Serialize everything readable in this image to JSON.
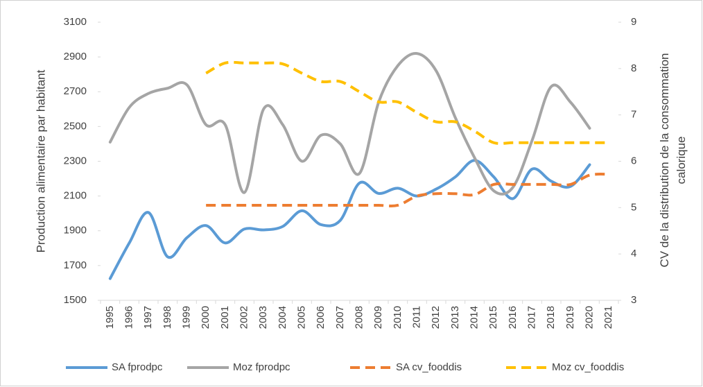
{
  "chart_data": {
    "type": "line",
    "categories": [
      "1995",
      "1996",
      "1997",
      "1998",
      "1999",
      "2000",
      "2001",
      "2002",
      "2003",
      "2004",
      "2005",
      "2006",
      "2007",
      "2008",
      "2009",
      "2010",
      "2011",
      "2012",
      "2013",
      "2014",
      "2015",
      "2016",
      "2017",
      "2018",
      "2019",
      "2020",
      "2021"
    ],
    "series": [
      {
        "name": "SA fprodpc",
        "color": "#5b9bd5",
        "dashed": false,
        "values": [
          1625,
          1830,
          2005,
          1750,
          1860,
          1930,
          1830,
          1910,
          1905,
          1925,
          2015,
          1935,
          1960,
          2175,
          2115,
          2145,
          2100,
          2140,
          2210,
          2305,
          2210,
          2085,
          2255,
          2185,
          2155,
          2280,
          null
        ]
      },
      {
        "name": "Moz fprodpc",
        "color": "#a5a5a5",
        "dashed": false,
        "values": [
          2410,
          2610,
          2690,
          2720,
          2740,
          2510,
          2510,
          2120,
          2600,
          2510,
          2300,
          2450,
          2400,
          2230,
          2640,
          2850,
          2920,
          2820,
          2550,
          2320,
          2130,
          2150,
          2420,
          2730,
          2640,
          2490,
          null
        ]
      },
      {
        "name": "SA cv_fooddis",
        "color": "#ed7d31",
        "dashed": true,
        "axis": "y2",
        "values": [
          null,
          null,
          null,
          null,
          null,
          5.05,
          5.05,
          5.05,
          5.05,
          5.05,
          5.05,
          5.05,
          5.05,
          5.05,
          5.05,
          5.05,
          5.25,
          5.3,
          5.3,
          5.28,
          5.5,
          5.5,
          5.5,
          5.5,
          5.5,
          5.7,
          5.72
        ]
      },
      {
        "name": "Moz cv_fooddis",
        "color": "#ffc000",
        "dashed": true,
        "axis": "y2",
        "values": [
          null,
          null,
          null,
          null,
          null,
          7.9,
          8.12,
          8.12,
          8.12,
          8.1,
          7.9,
          7.72,
          7.72,
          7.5,
          7.28,
          7.28,
          7.05,
          6.85,
          6.85,
          6.65,
          6.4,
          6.4,
          6.4,
          6.4,
          6.4,
          6.4,
          6.4
        ]
      }
    ],
    "ylabel": "Production alimentaire par habitant",
    "y2label": [
      "CV de la distribution de la consommation",
      "calorique"
    ],
    "ylim": [
      1500,
      3100
    ],
    "yticks": [
      1500,
      1700,
      1900,
      2100,
      2300,
      2500,
      2700,
      2900,
      3100
    ],
    "y2lim": [
      3,
      9
    ],
    "y2ticks": [
      3,
      4,
      5,
      6,
      7,
      8,
      9
    ],
    "legend": "bottom"
  }
}
